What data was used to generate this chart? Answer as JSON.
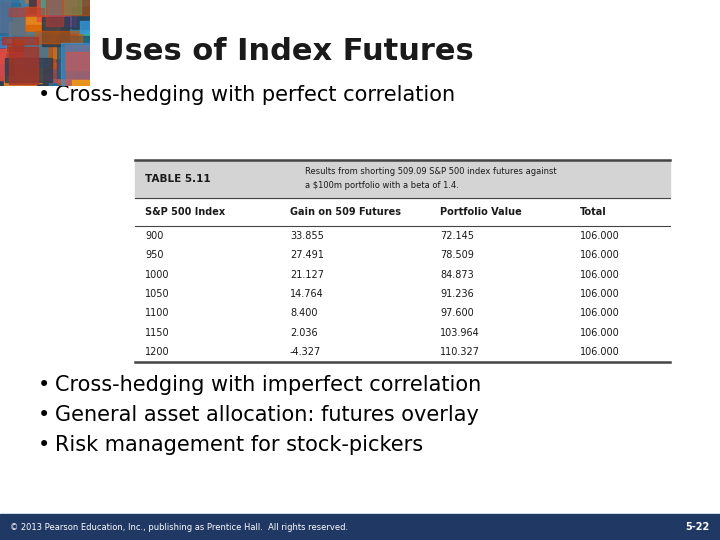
{
  "title": "Uses of Index Futures",
  "title_fontsize": 22,
  "title_color": "#1a1a1a",
  "bullet1": "Cross-hedging with perfect correlation",
  "bullet2": "Cross-hedging with imperfect correlation",
  "bullet3": "General asset allocation: futures overlay",
  "bullet4": "Risk management for stock-pickers",
  "bullet_fontsize": 15,
  "table_label": "TABLE 5.11",
  "table_caption_line1": "Results from shorting 509.09 S&P 500 index futures against",
  "table_caption_line2": "a $100m portfolio with a beta of 1.4.",
  "table_headers": [
    "S&P 500 Index",
    "Gain on 509 Futures",
    "Portfolio Value",
    "Total"
  ],
  "table_data": [
    [
      "900",
      "33.855",
      "72.145",
      "106.000"
    ],
    [
      "950",
      "27.491",
      "78.509",
      "106.000"
    ],
    [
      "1000",
      "21.127",
      "84.873",
      "106.000"
    ],
    [
      "1050",
      "14.764",
      "91.236",
      "106.000"
    ],
    [
      "1100",
      "8.400",
      "97.600",
      "106.000"
    ],
    [
      "1150",
      "2.036",
      "103.964",
      "106.000"
    ],
    [
      "1200",
      "-4.327",
      "110.327",
      "106.000"
    ]
  ],
  "footer_text": "© 2013 Pearson Education, Inc., publishing as Prentice Hall.  All rights reserved.",
  "footer_right": "5-22",
  "footer_bg": "#1f3864",
  "bg_color": "#ffffff",
  "art_colors": [
    "#c0392b",
    "#e74c3c",
    "#2980b9",
    "#3498db",
    "#1abc9c",
    "#e67e22",
    "#8e44ad",
    "#f39c12",
    "#2c3e50",
    "#d35400",
    "#a93226",
    "#1a5276"
  ]
}
